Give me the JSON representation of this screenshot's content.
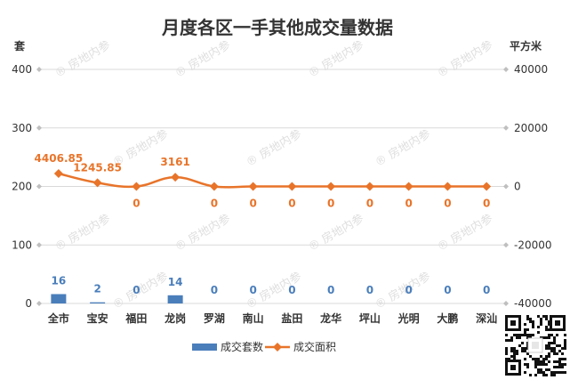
{
  "colors": {
    "bar": "#4A7EBB",
    "line": "#E8742A",
    "grid": "#D9D9D9",
    "axis_marker": "#BFBFBF"
  },
  "watermark": "房地内参",
  "chart_data": {
    "type": "bar",
    "title": "月度各区一手其他成交量数据",
    "y_left_unit": "套",
    "y_right_unit": "平方米",
    "ylim_left": [
      0,
      400
    ],
    "ylim_right": [
      -40000,
      40000
    ],
    "y_left_ticks": [
      "0",
      "100",
      "200",
      "300",
      "400"
    ],
    "y_right_ticks": [
      "-40000",
      "-20000",
      "0",
      "20000",
      "40000"
    ],
    "grid": true,
    "legend": "bottom",
    "categories": [
      "全市",
      "宝安",
      "福田",
      "龙岗",
      "罗湖",
      "南山",
      "盐田",
      "龙华",
      "坪山",
      "光明",
      "大鹏",
      "深汕"
    ],
    "series": [
      {
        "name": "成交套数",
        "type": "bar",
        "axis": "left",
        "values": [
          16,
          2,
          0,
          14,
          0,
          0,
          0,
          0,
          0,
          0,
          0,
          0
        ],
        "labels": [
          "16",
          "2",
          "0",
          "14",
          "0",
          "0",
          "0",
          "0",
          "0",
          "0",
          "0",
          "0"
        ]
      },
      {
        "name": "成交面积",
        "type": "line",
        "axis": "right",
        "values": [
          4406.85,
          1245.85,
          0,
          3161,
          0,
          0,
          0,
          0,
          0,
          0,
          0,
          0
        ],
        "labels": [
          "4406.85",
          "1245.85",
          "0",
          "3161",
          "0",
          "0",
          "0",
          "0",
          "0",
          "0",
          "0",
          "0"
        ]
      }
    ]
  }
}
